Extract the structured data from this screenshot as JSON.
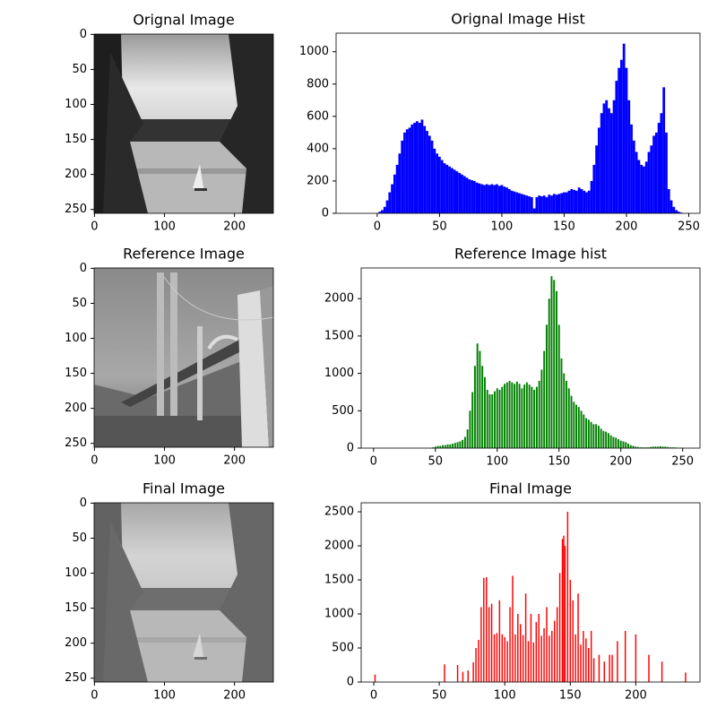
{
  "chart_data": [
    {
      "type": "image",
      "title": "Orignal Image",
      "xlim": [
        -0.5,
        255.5
      ],
      "ylim": [
        255.5,
        -0.5
      ],
      "xticks": [
        0,
        100,
        200
      ],
      "yticks": [
        0,
        50,
        100,
        150,
        200,
        250
      ]
    },
    {
      "type": "bar",
      "title": "Orignal Image Hist",
      "color": "#0000ff",
      "xlim": [
        -33,
        259
      ],
      "ylim": [
        0,
        1115
      ],
      "xticks": [
        0,
        50,
        100,
        150,
        200,
        250
      ],
      "yticks": [
        0,
        200,
        400,
        600,
        800,
        1000
      ],
      "x": [
        0,
        2,
        4,
        6,
        8,
        10,
        12,
        14,
        16,
        18,
        20,
        22,
        24,
        26,
        28,
        30,
        32,
        34,
        36,
        38,
        40,
        42,
        44,
        46,
        48,
        50,
        52,
        54,
        56,
        58,
        60,
        62,
        64,
        66,
        68,
        70,
        72,
        74,
        76,
        78,
        80,
        82,
        84,
        86,
        88,
        90,
        92,
        94,
        96,
        98,
        100,
        102,
        104,
        106,
        108,
        110,
        112,
        114,
        116,
        118,
        120,
        122,
        124,
        126,
        128,
        130,
        132,
        134,
        136,
        138,
        140,
        142,
        144,
        146,
        148,
        150,
        152,
        154,
        156,
        158,
        160,
        162,
        164,
        166,
        168,
        170,
        172,
        174,
        176,
        178,
        180,
        182,
        184,
        186,
        188,
        190,
        192,
        194,
        196,
        198,
        200,
        202,
        204,
        206,
        208,
        210,
        212,
        214,
        216,
        218,
        220,
        222,
        224,
        226,
        228,
        230,
        232,
        234,
        236,
        238,
        240,
        242,
        244,
        246,
        248,
        250
      ],
      "values": [
        0,
        10,
        20,
        40,
        80,
        130,
        180,
        240,
        300,
        370,
        450,
        500,
        520,
        530,
        550,
        560,
        570,
        560,
        580,
        540,
        510,
        480,
        450,
        400,
        370,
        350,
        330,
        310,
        300,
        290,
        280,
        270,
        260,
        250,
        240,
        230,
        220,
        210,
        205,
        200,
        190,
        185,
        180,
        175,
        180,
        175,
        180,
        175,
        180,
        170,
        175,
        165,
        160,
        150,
        140,
        135,
        130,
        125,
        120,
        115,
        110,
        105,
        100,
        30,
        100,
        110,
        105,
        110,
        100,
        115,
        110,
        120,
        115,
        120,
        125,
        130,
        130,
        140,
        150,
        145,
        140,
        160,
        150,
        140,
        130,
        140,
        200,
        300,
        420,
        530,
        620,
        680,
        700,
        650,
        620,
        700,
        820,
        900,
        950,
        1050,
        900,
        700,
        550,
        450,
        380,
        330,
        300,
        290,
        320,
        380,
        420,
        480,
        500,
        560,
        620,
        780,
        500,
        150,
        80,
        40,
        20,
        10,
        5,
        0,
        0,
        0
      ]
    },
    {
      "type": "image",
      "title": "Reference Image",
      "xlim": [
        -0.5,
        255.5
      ],
      "ylim": [
        255.5,
        -0.5
      ],
      "xticks": [
        0,
        100,
        200
      ],
      "yticks": [
        0,
        50,
        100,
        150,
        200,
        250
      ]
    },
    {
      "type": "bar",
      "title": "Reference Image hist",
      "color": "#008000",
      "xlim": [
        -10,
        264
      ],
      "ylim": [
        0,
        2410
      ],
      "xticks": [
        0,
        50,
        100,
        150,
        200,
        250
      ],
      "yticks": [
        0,
        500,
        1000,
        1500,
        2000
      ],
      "x": [
        48,
        50,
        52,
        54,
        56,
        58,
        60,
        62,
        64,
        66,
        68,
        70,
        72,
        74,
        76,
        78,
        80,
        82,
        84,
        86,
        88,
        90,
        92,
        94,
        96,
        98,
        100,
        102,
        104,
        106,
        108,
        110,
        112,
        114,
        116,
        118,
        120,
        122,
        124,
        126,
        128,
        130,
        132,
        134,
        136,
        138,
        140,
        142,
        144,
        146,
        148,
        150,
        152,
        154,
        156,
        158,
        160,
        162,
        164,
        166,
        168,
        170,
        172,
        174,
        176,
        178,
        180,
        182,
        184,
        186,
        188,
        190,
        192,
        194,
        196,
        198,
        200,
        202,
        204,
        206,
        208,
        210,
        212,
        214,
        216,
        218,
        220,
        222,
        224,
        226,
        228,
        230,
        232,
        234,
        236,
        238,
        240,
        242,
        244,
        246,
        248,
        250
      ],
      "values": [
        10,
        20,
        30,
        30,
        40,
        40,
        50,
        50,
        60,
        70,
        80,
        90,
        110,
        150,
        250,
        500,
        750,
        1100,
        1400,
        1300,
        1100,
        950,
        780,
        720,
        720,
        760,
        800,
        780,
        820,
        860,
        880,
        900,
        880,
        860,
        890,
        860,
        800,
        850,
        880,
        850,
        820,
        780,
        820,
        900,
        1050,
        1300,
        1650,
        2000,
        2300,
        2250,
        2100,
        1650,
        1200,
        1000,
        900,
        800,
        700,
        620,
        580,
        550,
        500,
        450,
        400,
        380,
        350,
        320,
        320,
        300,
        260,
        230,
        220,
        200,
        170,
        150,
        140,
        120,
        100,
        90,
        80,
        60,
        40,
        30,
        20,
        15,
        10,
        10,
        10,
        10,
        15,
        20,
        20,
        20,
        25,
        20,
        20,
        15,
        10,
        10,
        10,
        5,
        5,
        5
      ]
    },
    {
      "type": "image",
      "title": "Final Image",
      "xlim": [
        -0.5,
        255.5
      ],
      "ylim": [
        255.5,
        -0.5
      ],
      "xticks": [
        0,
        100,
        200
      ],
      "yticks": [
        0,
        50,
        100,
        150,
        200,
        250
      ]
    },
    {
      "type": "bar",
      "title": "Final Image",
      "color": "#ff0000",
      "xlim": [
        -9.6,
        249
      ],
      "ylim": [
        0,
        2632
      ],
      "xticks": [
        0,
        50,
        100,
        150,
        200
      ],
      "yticks": [
        0,
        500,
        1000,
        1500,
        2000,
        2500
      ],
      "x": [
        1,
        54,
        64,
        68,
        72,
        76,
        78,
        80,
        82,
        84,
        86,
        88,
        90,
        92,
        94,
        96,
        98,
        100,
        102,
        104,
        106,
        108,
        110,
        112,
        114,
        116,
        118,
        120,
        122,
        124,
        126,
        128,
        130,
        132,
        134,
        136,
        138,
        140,
        142,
        144,
        145,
        146,
        148,
        150,
        152,
        154,
        156,
        158,
        160,
        162,
        164,
        166,
        168,
        172,
        176,
        180,
        182,
        186,
        192,
        200,
        210,
        220,
        238
      ],
      "values": [
        110,
        260,
        250,
        150,
        170,
        290,
        500,
        620,
        1100,
        1530,
        1540,
        1100,
        1150,
        700,
        720,
        1200,
        700,
        660,
        600,
        1100,
        1560,
        700,
        1000,
        850,
        690,
        1300,
        600,
        1000,
        580,
        880,
        1000,
        680,
        790,
        1100,
        680,
        750,
        900,
        1100,
        1600,
        2100,
        2150,
        2000,
        2500,
        1500,
        1200,
        700,
        1300,
        550,
        750,
        640,
        500,
        750,
        350,
        400,
        300,
        400,
        400,
        600,
        750,
        700,
        400,
        300,
        140
      ]
    }
  ]
}
